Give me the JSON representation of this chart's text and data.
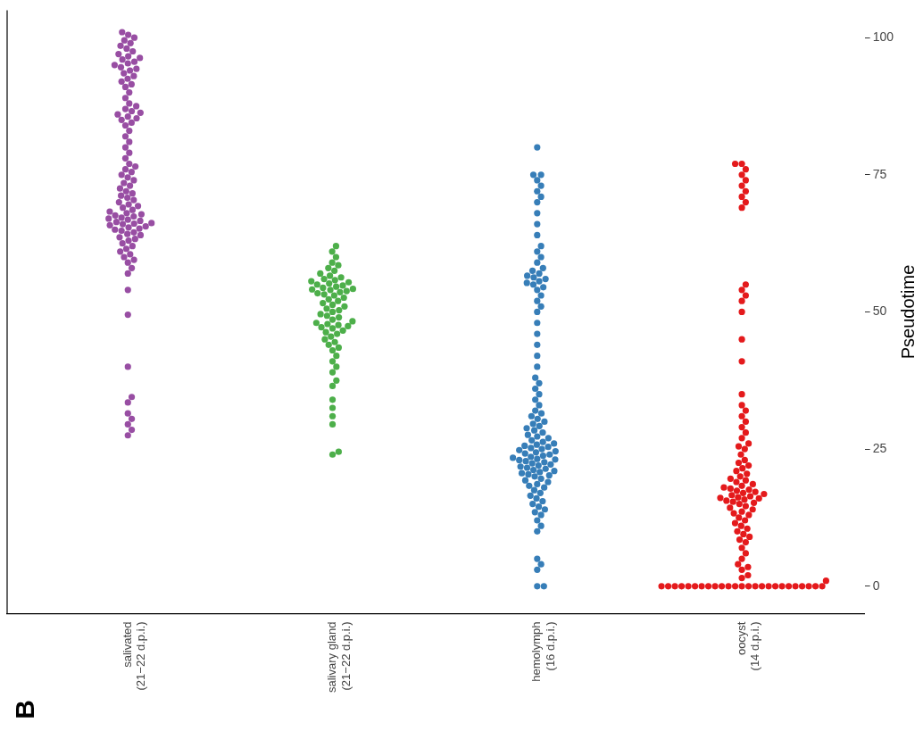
{
  "chart_data": {
    "type": "scatter",
    "ylabel": "Pseudotime",
    "marker": "circle",
    "annotations": [
      "B"
    ],
    "categories": [
      "salivated (21−22 d.p.i.)",
      "salivary gland (21−22 d.p.i.)",
      "hemolymph (16 d.p.i.)",
      "oocyst (14 d.p.i.)"
    ],
    "ylim": [
      -5,
      105
    ],
    "yticks": [
      0,
      25,
      50,
      75,
      100
    ],
    "series": [
      {
        "color": "#984ea3",
        "x": [
          "salivated (21−22 d.p.i.)",
          "salivated (21−22 d.p.i.)",
          "salivated (21−22 d.p.i.)",
          "salivated (21−22 d.p.i.)",
          "salivated (21−22 d.p.i.)",
          "salivated (21−22 d.p.i.)",
          "salivated (21−22 d.p.i.)",
          "salivated (21−22 d.p.i.)",
          "salivated (21−22 d.p.i.)",
          "salivated (21−22 d.p.i.)",
          "salivated (21−22 d.p.i.)",
          "salivated (21−22 d.p.i.)",
          "salivated (21−22 d.p.i.)",
          "salivated (21−22 d.p.i.)",
          "salivated (21−22 d.p.i.)",
          "salivated (21−22 d.p.i.)",
          "salivated (21−22 d.p.i.)",
          "salivated (21−22 d.p.i.)",
          "salivated (21−22 d.p.i.)",
          "salivated (21−22 d.p.i.)",
          "salivated (21−22 d.p.i.)",
          "salivated (21−22 d.p.i.)",
          "salivated (21−22 d.p.i.)",
          "salivated (21−22 d.p.i.)",
          "salivated (21−22 d.p.i.)",
          "salivated (21−22 d.p.i.)",
          "salivated (21−22 d.p.i.)",
          "salivated (21−22 d.p.i.)",
          "salivated (21−22 d.p.i.)",
          "salivated (21−22 d.p.i.)",
          "salivated (21−22 d.p.i.)",
          "salivated (21−22 d.p.i.)",
          "salivated (21−22 d.p.i.)",
          "salivated (21−22 d.p.i.)",
          "salivated (21−22 d.p.i.)",
          "salivated (21−22 d.p.i.)",
          "salivated (21−22 d.p.i.)",
          "salivated (21−22 d.p.i.)",
          "salivated (21−22 d.p.i.)",
          "salivated (21−22 d.p.i.)",
          "salivated (21−22 d.p.i.)",
          "salivated (21−22 d.p.i.)",
          "salivated (21−22 d.p.i.)",
          "salivated (21−22 d.p.i.)",
          "salivated (21−22 d.p.i.)",
          "salivated (21−22 d.p.i.)",
          "salivated (21−22 d.p.i.)",
          "salivated (21−22 d.p.i.)",
          "salivated (21−22 d.p.i.)",
          "salivated (21−22 d.p.i.)",
          "salivated (21−22 d.p.i.)",
          "salivated (21−22 d.p.i.)",
          "salivated (21−22 d.p.i.)",
          "salivated (21−22 d.p.i.)",
          "salivated (21−22 d.p.i.)",
          "salivated (21−22 d.p.i.)",
          "salivated (21−22 d.p.i.)",
          "salivated (21−22 d.p.i.)",
          "salivated (21−22 d.p.i.)",
          "salivated (21−22 d.p.i.)",
          "salivated (21−22 d.p.i.)",
          "salivated (21−22 d.p.i.)",
          "salivated (21−22 d.p.i.)",
          "salivated (21−22 d.p.i.)",
          "salivated (21−22 d.p.i.)",
          "salivated (21−22 d.p.i.)",
          "salivated (21−22 d.p.i.)",
          "salivated (21−22 d.p.i.)",
          "salivated (21−22 d.p.i.)",
          "salivated (21−22 d.p.i.)",
          "salivated (21−22 d.p.i.)",
          "salivated (21−22 d.p.i.)",
          "salivated (21−22 d.p.i.)",
          "salivated (21−22 d.p.i.)",
          "salivated (21−22 d.p.i.)",
          "salivated (21−22 d.p.i.)",
          "salivated (21−22 d.p.i.)",
          "salivated (21−22 d.p.i.)",
          "salivated (21−22 d.p.i.)",
          "salivated (21−22 d.p.i.)",
          "salivated (21−22 d.p.i.)",
          "salivated (21−22 d.p.i.)",
          "salivated (21−22 d.p.i.)",
          "salivated (21−22 d.p.i.)",
          "salivated (21−22 d.p.i.)",
          "salivated (21−22 d.p.i.)",
          "salivated (21−22 d.p.i.)",
          "salivated (21−22 d.p.i.)",
          "salivated (21−22 d.p.i.)",
          "salivated (21−22 d.p.i.)",
          "salivated (21−22 d.p.i.)",
          "salivated (21−22 d.p.i.)",
          "salivated (21−22 d.p.i.)",
          "salivated (21−22 d.p.i.)",
          "salivated (21−22 d.p.i.)",
          "salivated (21−22 d.p.i.)",
          "salivated (21−22 d.p.i.)",
          "salivated (21−22 d.p.i.)",
          "salivated (21−22 d.p.i.)",
          "salivated (21−22 d.p.i.)",
          "salivated (21−22 d.p.i.)",
          "salivated (21−22 d.p.i.)",
          "salivated (21−22 d.p.i.)",
          "salivated (21−22 d.p.i.)",
          "salivated (21−22 d.p.i.)",
          "salivated (21−22 d.p.i.)",
          "salivated (21−22 d.p.i.)",
          "salivated (21−22 d.p.i.)"
        ],
        "values": [
          27.5,
          28.5,
          29.5,
          30.5,
          31.5,
          33.5,
          34.5,
          40,
          49.5,
          54,
          57,
          58,
          59,
          59.5,
          60,
          60.5,
          61,
          61.5,
          62,
          62.5,
          63,
          63.3,
          63.6,
          64,
          64.2,
          64.5,
          64.8,
          65,
          65.2,
          65.4,
          65.6,
          65.8,
          66,
          66.1,
          66.2,
          66.4,
          66.6,
          66.8,
          67,
          67.2,
          67.4,
          67.6,
          67.8,
          68,
          68.3,
          68.6,
          69,
          69.3,
          69.6,
          70,
          70.4,
          70.8,
          71.2,
          71.6,
          72,
          72.5,
          73,
          73.5,
          74,
          74.5,
          75,
          75.5,
          76,
          76.5,
          77,
          78,
          79,
          80,
          81,
          82,
          83,
          84,
          84.5,
          85,
          85.3,
          85.6,
          86,
          86.3,
          86.6,
          87,
          87.5,
          88,
          89,
          90,
          91,
          91.5,
          92,
          92.5,
          93,
          93.5,
          94,
          94.3,
          94.6,
          95,
          95.3,
          95.6,
          96,
          96.3,
          96.6,
          97,
          97.5,
          98,
          98.5,
          99,
          99.5,
          100,
          100.5,
          101
        ]
      },
      {
        "color": "#4daf4a",
        "x": [
          "salivary gland (21−22 d.p.i.)",
          "salivary gland (21−22 d.p.i.)",
          "salivary gland (21−22 d.p.i.)",
          "salivary gland (21−22 d.p.i.)",
          "salivary gland (21−22 d.p.i.)",
          "salivary gland (21−22 d.p.i.)",
          "salivary gland (21−22 d.p.i.)",
          "salivary gland (21−22 d.p.i.)",
          "salivary gland (21−22 d.p.i.)",
          "salivary gland (21−22 d.p.i.)",
          "salivary gland (21−22 d.p.i.)",
          "salivary gland (21−22 d.p.i.)",
          "salivary gland (21−22 d.p.i.)",
          "salivary gland (21−22 d.p.i.)",
          "salivary gland (21−22 d.p.i.)",
          "salivary gland (21−22 d.p.i.)",
          "salivary gland (21−22 d.p.i.)",
          "salivary gland (21−22 d.p.i.)",
          "salivary gland (21−22 d.p.i.)",
          "salivary gland (21−22 d.p.i.)",
          "salivary gland (21−22 d.p.i.)",
          "salivary gland (21−22 d.p.i.)",
          "salivary gland (21−22 d.p.i.)",
          "salivary gland (21−22 d.p.i.)",
          "salivary gland (21−22 d.p.i.)",
          "salivary gland (21−22 d.p.i.)",
          "salivary gland (21−22 d.p.i.)",
          "salivary gland (21−22 d.p.i.)",
          "salivary gland (21−22 d.p.i.)",
          "salivary gland (21−22 d.p.i.)",
          "salivary gland (21−22 d.p.i.)",
          "salivary gland (21−22 d.p.i.)",
          "salivary gland (21−22 d.p.i.)",
          "salivary gland (21−22 d.p.i.)",
          "salivary gland (21−22 d.p.i.)",
          "salivary gland (21−22 d.p.i.)",
          "salivary gland (21−22 d.p.i.)",
          "salivary gland (21−22 d.p.i.)",
          "salivary gland (21−22 d.p.i.)",
          "salivary gland (21−22 d.p.i.)",
          "salivary gland (21−22 d.p.i.)",
          "salivary gland (21−22 d.p.i.)",
          "salivary gland (21−22 d.p.i.)",
          "salivary gland (21−22 d.p.i.)",
          "salivary gland (21−22 d.p.i.)",
          "salivary gland (21−22 d.p.i.)",
          "salivary gland (21−22 d.p.i.)",
          "salivary gland (21−22 d.p.i.)",
          "salivary gland (21−22 d.p.i.)",
          "salivary gland (21−22 d.p.i.)",
          "salivary gland (21−22 d.p.i.)",
          "salivary gland (21−22 d.p.i.)",
          "salivary gland (21−22 d.p.i.)",
          "salivary gland (21−22 d.p.i.)",
          "salivary gland (21−22 d.p.i.)",
          "salivary gland (21−22 d.p.i.)",
          "salivary gland (21−22 d.p.i.)",
          "salivary gland (21−22 d.p.i.)",
          "salivary gland (21−22 d.p.i.)",
          "salivary gland (21−22 d.p.i.)",
          "salivary gland (21−22 d.p.i.)",
          "salivary gland (21−22 d.p.i.)",
          "salivary gland (21−22 d.p.i.)",
          "salivary gland (21−22 d.p.i.)",
          "salivary gland (21−22 d.p.i.)",
          "salivary gland (21−22 d.p.i.)",
          "salivary gland (21−22 d.p.i.)",
          "salivary gland (21−22 d.p.i.)"
        ],
        "values": [
          24,
          24.5,
          29.5,
          31,
          32.5,
          34,
          36.5,
          37.5,
          39,
          40,
          41,
          42,
          43,
          43.5,
          44,
          44.5,
          45,
          45.5,
          46,
          46.3,
          46.6,
          47,
          47.2,
          47.4,
          47.6,
          47.8,
          48,
          48.3,
          48.6,
          49,
          49.3,
          49.6,
          50,
          50.3,
          50.6,
          51,
          51.3,
          51.6,
          52,
          52.3,
          52.6,
          53,
          53.2,
          53.4,
          53.6,
          53.8,
          54,
          54.1,
          54.2,
          54.4,
          54.6,
          54.8,
          55,
          55.2,
          55.4,
          55.6,
          55.8,
          56,
          56.3,
          56.6,
          57,
          57.5,
          58,
          58.5,
          59,
          60,
          61,
          62
        ]
      },
      {
        "color": "#377eb8",
        "x": [
          "hemolymph (16 d.p.i.)",
          "hemolymph (16 d.p.i.)",
          "hemolymph (16 d.p.i.)",
          "hemolymph (16 d.p.i.)",
          "hemolymph (16 d.p.i.)",
          "hemolymph (16 d.p.i.)",
          "hemolymph (16 d.p.i.)",
          "hemolymph (16 d.p.i.)",
          "hemolymph (16 d.p.i.)",
          "hemolymph (16 d.p.i.)",
          "hemolymph (16 d.p.i.)",
          "hemolymph (16 d.p.i.)",
          "hemolymph (16 d.p.i.)",
          "hemolymph (16 d.p.i.)",
          "hemolymph (16 d.p.i.)",
          "hemolymph (16 d.p.i.)",
          "hemolymph (16 d.p.i.)",
          "hemolymph (16 d.p.i.)",
          "hemolymph (16 d.p.i.)",
          "hemolymph (16 d.p.i.)",
          "hemolymph (16 d.p.i.)",
          "hemolymph (16 d.p.i.)",
          "hemolymph (16 d.p.i.)",
          "hemolymph (16 d.p.i.)",
          "hemolymph (16 d.p.i.)",
          "hemolymph (16 d.p.i.)",
          "hemolymph (16 d.p.i.)",
          "hemolymph (16 d.p.i.)",
          "hemolymph (16 d.p.i.)",
          "hemolymph (16 d.p.i.)",
          "hemolymph (16 d.p.i.)",
          "hemolymph (16 d.p.i.)",
          "hemolymph (16 d.p.i.)",
          "hemolymph (16 d.p.i.)",
          "hemolymph (16 d.p.i.)",
          "hemolymph (16 d.p.i.)",
          "hemolymph (16 d.p.i.)",
          "hemolymph (16 d.p.i.)",
          "hemolymph (16 d.p.i.)",
          "hemolymph (16 d.p.i.)",
          "hemolymph (16 d.p.i.)",
          "hemolymph (16 d.p.i.)",
          "hemolymph (16 d.p.i.)",
          "hemolymph (16 d.p.i.)",
          "hemolymph (16 d.p.i.)",
          "hemolymph (16 d.p.i.)",
          "hemolymph (16 d.p.i.)",
          "hemolymph (16 d.p.i.)",
          "hemolymph (16 d.p.i.)",
          "hemolymph (16 d.p.i.)",
          "hemolymph (16 d.p.i.)",
          "hemolymph (16 d.p.i.)",
          "hemolymph (16 d.p.i.)",
          "hemolymph (16 d.p.i.)",
          "hemolymph (16 d.p.i.)",
          "hemolymph (16 d.p.i.)",
          "hemolymph (16 d.p.i.)",
          "hemolymph (16 d.p.i.)",
          "hemolymph (16 d.p.i.)",
          "hemolymph (16 d.p.i.)",
          "hemolymph (16 d.p.i.)",
          "hemolymph (16 d.p.i.)",
          "hemolymph (16 d.p.i.)",
          "hemolymph (16 d.p.i.)",
          "hemolymph (16 d.p.i.)",
          "hemolymph (16 d.p.i.)",
          "hemolymph (16 d.p.i.)",
          "hemolymph (16 d.p.i.)",
          "hemolymph (16 d.p.i.)",
          "hemolymph (16 d.p.i.)",
          "hemolymph (16 d.p.i.)",
          "hemolymph (16 d.p.i.)",
          "hemolymph (16 d.p.i.)",
          "hemolymph (16 d.p.i.)",
          "hemolymph (16 d.p.i.)",
          "hemolymph (16 d.p.i.)",
          "hemolymph (16 d.p.i.)",
          "hemolymph (16 d.p.i.)",
          "hemolymph (16 d.p.i.)",
          "hemolymph (16 d.p.i.)",
          "hemolymph (16 d.p.i.)",
          "hemolymph (16 d.p.i.)",
          "hemolymph (16 d.p.i.)",
          "hemolymph (16 d.p.i.)",
          "hemolymph (16 d.p.i.)",
          "hemolymph (16 d.p.i.)",
          "hemolymph (16 d.p.i.)",
          "hemolymph (16 d.p.i.)",
          "hemolymph (16 d.p.i.)",
          "hemolymph (16 d.p.i.)",
          "hemolymph (16 d.p.i.)",
          "hemolymph (16 d.p.i.)",
          "hemolymph (16 d.p.i.)",
          "hemolymph (16 d.p.i.)",
          "hemolymph (16 d.p.i.)",
          "hemolymph (16 d.p.i.)",
          "hemolymph (16 d.p.i.)",
          "hemolymph (16 d.p.i.)",
          "hemolymph (16 d.p.i.)",
          "hemolymph (16 d.p.i.)",
          "hemolymph (16 d.p.i.)",
          "hemolymph (16 d.p.i.)",
          "hemolymph (16 d.p.i.)",
          "hemolymph (16 d.p.i.)",
          "hemolymph (16 d.p.i.)",
          "hemolymph (16 d.p.i.)",
          "hemolymph (16 d.p.i.)",
          "hemolymph (16 d.p.i.)",
          "hemolymph (16 d.p.i.)",
          "hemolymph (16 d.p.i.)",
          "hemolymph (16 d.p.i.)",
          "hemolymph (16 d.p.i.)"
        ],
        "values": [
          0,
          0,
          3,
          4,
          5,
          10,
          11,
          12,
          13,
          13.5,
          14,
          14.5,
          15,
          15.5,
          16,
          16.5,
          17,
          17.5,
          18,
          18.3,
          18.6,
          19,
          19.3,
          19.6,
          20,
          20.2,
          20.4,
          20.6,
          20.8,
          21,
          21.2,
          21.4,
          21.6,
          21.8,
          22,
          22.2,
          22.4,
          22.6,
          22.8,
          23,
          23.1,
          23.2,
          23.4,
          23.6,
          23.8,
          24,
          24.2,
          24.4,
          24.6,
          24.8,
          25,
          25.2,
          25.4,
          25.6,
          25.8,
          26,
          26.3,
          26.6,
          27,
          27.3,
          27.6,
          28,
          28.4,
          28.8,
          29.2,
          29.6,
          30,
          30.5,
          31,
          31.5,
          32,
          33,
          34,
          35,
          36,
          37,
          38,
          40,
          42,
          44,
          46,
          48,
          50,
          51,
          52,
          53,
          54,
          54.5,
          55,
          55.3,
          55.6,
          56,
          56.3,
          56.6,
          57,
          57.5,
          58,
          59,
          60,
          61,
          62,
          64,
          66,
          68,
          70,
          71,
          72,
          73,
          74,
          75,
          75,
          80
        ]
      },
      {
        "color": "#e41a1c",
        "x": [
          "oocyst (14 d.p.i.)",
          "oocyst (14 d.p.i.)",
          "oocyst (14 d.p.i.)",
          "oocyst (14 d.p.i.)",
          "oocyst (14 d.p.i.)",
          "oocyst (14 d.p.i.)",
          "oocyst (14 d.p.i.)",
          "oocyst (14 d.p.i.)",
          "oocyst (14 d.p.i.)",
          "oocyst (14 d.p.i.)",
          "oocyst (14 d.p.i.)",
          "oocyst (14 d.p.i.)",
          "oocyst (14 d.p.i.)",
          "oocyst (14 d.p.i.)",
          "oocyst (14 d.p.i.)",
          "oocyst (14 d.p.i.)",
          "oocyst (14 d.p.i.)",
          "oocyst (14 d.p.i.)",
          "oocyst (14 d.p.i.)",
          "oocyst (14 d.p.i.)",
          "oocyst (14 d.p.i.)",
          "oocyst (14 d.p.i.)",
          "oocyst (14 d.p.i.)",
          "oocyst (14 d.p.i.)",
          "oocyst (14 d.p.i.)",
          "oocyst (14 d.p.i.)",
          "oocyst (14 d.p.i.)",
          "oocyst (14 d.p.i.)",
          "oocyst (14 d.p.i.)",
          "oocyst (14 d.p.i.)",
          "oocyst (14 d.p.i.)",
          "oocyst (14 d.p.i.)",
          "oocyst (14 d.p.i.)",
          "oocyst (14 d.p.i.)",
          "oocyst (14 d.p.i.)",
          "oocyst (14 d.p.i.)",
          "oocyst (14 d.p.i.)",
          "oocyst (14 d.p.i.)",
          "oocyst (14 d.p.i.)",
          "oocyst (14 d.p.i.)",
          "oocyst (14 d.p.i.)",
          "oocyst (14 d.p.i.)",
          "oocyst (14 d.p.i.)",
          "oocyst (14 d.p.i.)",
          "oocyst (14 d.p.i.)",
          "oocyst (14 d.p.i.)",
          "oocyst (14 d.p.i.)",
          "oocyst (14 d.p.i.)",
          "oocyst (14 d.p.i.)",
          "oocyst (14 d.p.i.)",
          "oocyst (14 d.p.i.)",
          "oocyst (14 d.p.i.)",
          "oocyst (14 d.p.i.)",
          "oocyst (14 d.p.i.)",
          "oocyst (14 d.p.i.)",
          "oocyst (14 d.p.i.)",
          "oocyst (14 d.p.i.)",
          "oocyst (14 d.p.i.)",
          "oocyst (14 d.p.i.)",
          "oocyst (14 d.p.i.)",
          "oocyst (14 d.p.i.)",
          "oocyst (14 d.p.i.)",
          "oocyst (14 d.p.i.)",
          "oocyst (14 d.p.i.)",
          "oocyst (14 d.p.i.)",
          "oocyst (14 d.p.i.)",
          "oocyst (14 d.p.i.)",
          "oocyst (14 d.p.i.)",
          "oocyst (14 d.p.i.)",
          "oocyst (14 d.p.i.)",
          "oocyst (14 d.p.i.)",
          "oocyst (14 d.p.i.)",
          "oocyst (14 d.p.i.)",
          "oocyst (14 d.p.i.)",
          "oocyst (14 d.p.i.)",
          "oocyst (14 d.p.i.)",
          "oocyst (14 d.p.i.)",
          "oocyst (14 d.p.i.)",
          "oocyst (14 d.p.i.)",
          "oocyst (14 d.p.i.)",
          "oocyst (14 d.p.i.)",
          "oocyst (14 d.p.i.)",
          "oocyst (14 d.p.i.)",
          "oocyst (14 d.p.i.)",
          "oocyst (14 d.p.i.)",
          "oocyst (14 d.p.i.)",
          "oocyst (14 d.p.i.)",
          "oocyst (14 d.p.i.)",
          "oocyst (14 d.p.i.)",
          "oocyst (14 d.p.i.)",
          "oocyst (14 d.p.i.)",
          "oocyst (14 d.p.i.)",
          "oocyst (14 d.p.i.)",
          "oocyst (14 d.p.i.)",
          "oocyst (14 d.p.i.)",
          "oocyst (14 d.p.i.)",
          "oocyst (14 d.p.i.)",
          "oocyst (14 d.p.i.)",
          "oocyst (14 d.p.i.)",
          "oocyst (14 d.p.i.)",
          "oocyst (14 d.p.i.)",
          "oocyst (14 d.p.i.)",
          "oocyst (14 d.p.i.)",
          "oocyst (14 d.p.i.)",
          "oocyst (14 d.p.i.)",
          "oocyst (14 d.p.i.)",
          "oocyst (14 d.p.i.)",
          "oocyst (14 d.p.i.)"
        ],
        "values": [
          0,
          0,
          0,
          0,
          0,
          0,
          0,
          0,
          0,
          0,
          0,
          0,
          0,
          0,
          0,
          0,
          0,
          0,
          0,
          0,
          0,
          0,
          0,
          0,
          0,
          1,
          1.5,
          2,
          3,
          3.5,
          4,
          5,
          6,
          7,
          8,
          8.5,
          9,
          9.5,
          10,
          10.5,
          11,
          11.5,
          12,
          12.5,
          13,
          13.3,
          13.6,
          14,
          14.3,
          14.6,
          15,
          15.2,
          15.4,
          15.6,
          15.8,
          16,
          16.1,
          16.2,
          16.4,
          16.6,
          16.8,
          17,
          17.2,
          17.4,
          17.6,
          17.8,
          18,
          18.3,
          18.6,
          19,
          19.3,
          19.6,
          20,
          20.5,
          21,
          21.5,
          22,
          22.5,
          23,
          24,
          25,
          25.5,
          26,
          27,
          28,
          29,
          30,
          31,
          32,
          33,
          35,
          41,
          45,
          50,
          52,
          53,
          54,
          55,
          69,
          70,
          71,
          72,
          73,
          74,
          75,
          76,
          77,
          77
        ]
      }
    ]
  }
}
